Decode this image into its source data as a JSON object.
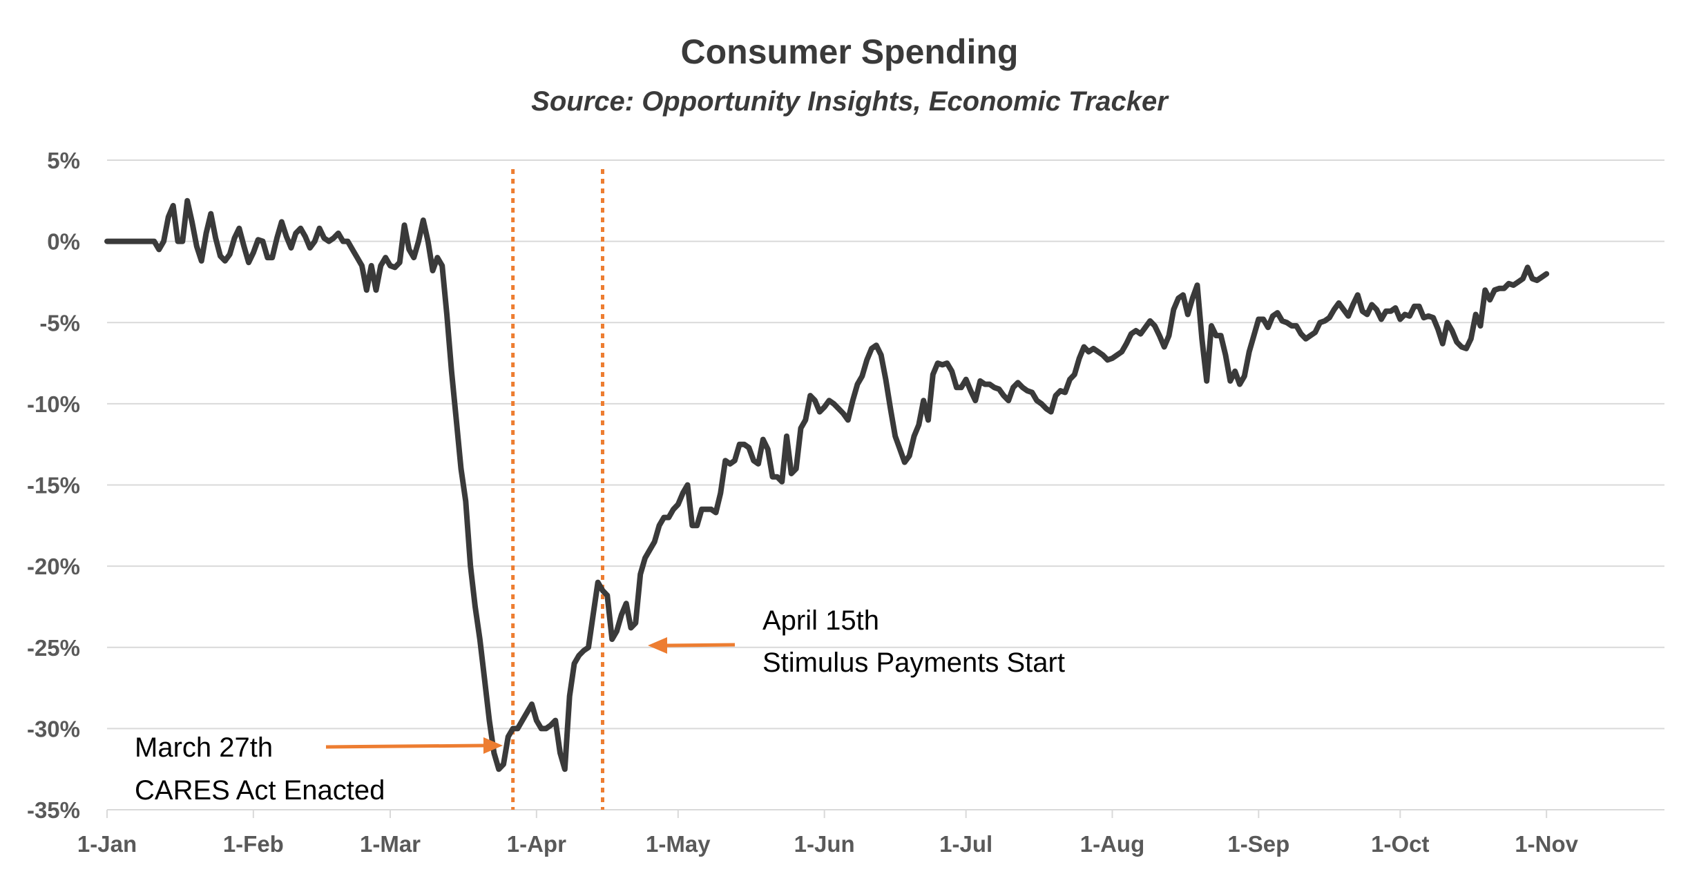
{
  "chart_data": {
    "type": "line",
    "title": "Consumer Spending",
    "subtitle": "Source: Opportunity Insights, Economic Tracker",
    "xlabel": "",
    "ylabel": "",
    "ylim": [
      -35,
      5
    ],
    "y_ticks": [
      5,
      0,
      -5,
      -10,
      -15,
      -20,
      -25,
      -30,
      -35
    ],
    "y_tick_labels": [
      "5%",
      "0%",
      "-5%",
      "-10%",
      "-15%",
      "-20%",
      "-25%",
      "-30%",
      "-35%"
    ],
    "x_range_days": [
      0,
      330
    ],
    "x_ticks": [
      {
        "day": 0,
        "label": "1-Jan"
      },
      {
        "day": 31,
        "label": "1-Feb"
      },
      {
        "day": 60,
        "label": "1-Mar"
      },
      {
        "day": 91,
        "label": "1-Apr"
      },
      {
        "day": 121,
        "label": "1-May"
      },
      {
        "day": 152,
        "label": "1-Jun"
      },
      {
        "day": 182,
        "label": "1-Jul"
      },
      {
        "day": 213,
        "label": "1-Aug"
      },
      {
        "day": 244,
        "label": "1-Sep"
      },
      {
        "day": 274,
        "label": "1-Oct"
      },
      {
        "day": 305,
        "label": "1-Nov"
      }
    ],
    "series": [
      {
        "name": "Consumer Spending",
        "color": "#3a3a3a",
        "points": [
          [
            0,
            0
          ],
          [
            5,
            0
          ],
          [
            10,
            0
          ],
          [
            11,
            -0.5
          ],
          [
            12,
            0
          ],
          [
            13,
            1.5
          ],
          [
            14,
            2.2
          ],
          [
            15,
            0
          ],
          [
            16,
            0
          ],
          [
            17,
            2.5
          ],
          [
            18,
            1.2
          ],
          [
            19,
            -0.3
          ],
          [
            20,
            -1.2
          ],
          [
            21,
            0.5
          ],
          [
            22,
            1.7
          ],
          [
            23,
            0.2
          ],
          [
            24,
            -0.9
          ],
          [
            25,
            -1.2
          ],
          [
            26,
            -0.8
          ],
          [
            27,
            0.2
          ],
          [
            28,
            0.8
          ],
          [
            29,
            -0.3
          ],
          [
            30,
            -1.3
          ],
          [
            31,
            -0.7
          ],
          [
            32,
            0.1
          ],
          [
            33,
            0
          ],
          [
            34,
            -1
          ],
          [
            35,
            -1
          ],
          [
            36,
            0.2
          ],
          [
            37,
            1.2
          ],
          [
            38,
            0.3
          ],
          [
            39,
            -0.4
          ],
          [
            40,
            0.5
          ],
          [
            41,
            0.8
          ],
          [
            42,
            0.3
          ],
          [
            43,
            -0.4
          ],
          [
            44,
            0
          ],
          [
            45,
            0.8
          ],
          [
            46,
            0.2
          ],
          [
            47,
            0
          ],
          [
            48,
            0.2
          ],
          [
            49,
            0.5
          ],
          [
            50,
            0
          ],
          [
            51,
            0
          ],
          [
            52,
            -0.5
          ],
          [
            53,
            -1
          ],
          [
            54,
            -1.5
          ],
          [
            55,
            -3
          ],
          [
            56,
            -1.5
          ],
          [
            57,
            -3
          ],
          [
            58,
            -1.5
          ],
          [
            59,
            -1
          ],
          [
            60,
            -1.5
          ],
          [
            61,
            -1.6
          ],
          [
            62,
            -1.3
          ],
          [
            63,
            1
          ],
          [
            64,
            -0.5
          ],
          [
            65,
            -1
          ],
          [
            66,
            0
          ],
          [
            67,
            1.3
          ],
          [
            68,
            0
          ],
          [
            69,
            -1.8
          ],
          [
            70,
            -1
          ],
          [
            71,
            -1.5
          ],
          [
            72,
            -4.5
          ],
          [
            73,
            -8
          ],
          [
            74,
            -11
          ],
          [
            75,
            -14
          ],
          [
            76,
            -16
          ],
          [
            77,
            -20
          ],
          [
            78,
            -22.5
          ],
          [
            79,
            -24.5
          ],
          [
            80,
            -27
          ],
          [
            81,
            -29.5
          ],
          [
            82,
            -31.5
          ],
          [
            83,
            -32.5
          ],
          [
            84,
            -32.2
          ],
          [
            85,
            -30.5
          ],
          [
            86,
            -30
          ],
          [
            87,
            -30
          ],
          [
            88,
            -29.5
          ],
          [
            89,
            -29
          ],
          [
            90,
            -28.5
          ],
          [
            91,
            -29.5
          ],
          [
            92,
            -30
          ],
          [
            93,
            -30
          ],
          [
            94,
            -29.8
          ],
          [
            95,
            -29.5
          ],
          [
            96,
            -31.5
          ],
          [
            97,
            -32.5
          ],
          [
            98,
            -28
          ],
          [
            99,
            -26
          ],
          [
            100,
            -25.5
          ],
          [
            101,
            -25.2
          ],
          [
            102,
            -25
          ],
          [
            103,
            -23
          ],
          [
            104,
            -21
          ],
          [
            105,
            -21.5
          ],
          [
            106,
            -21.8
          ],
          [
            107,
            -24.5
          ],
          [
            108,
            -24
          ],
          [
            109,
            -23
          ],
          [
            110,
            -22.3
          ],
          [
            111,
            -23.8
          ],
          [
            112,
            -23.5
          ],
          [
            113,
            -20.5
          ],
          [
            114,
            -19.5
          ],
          [
            115,
            -19
          ],
          [
            116,
            -18.5
          ],
          [
            117,
            -17.5
          ],
          [
            118,
            -17
          ],
          [
            119,
            -17
          ],
          [
            120,
            -16.5
          ],
          [
            121,
            -16.2
          ],
          [
            122,
            -15.5
          ],
          [
            123,
            -15
          ],
          [
            124,
            -17.5
          ],
          [
            125,
            -17.5
          ],
          [
            126,
            -16.5
          ],
          [
            127,
            -16.5
          ],
          [
            128,
            -16.5
          ],
          [
            129,
            -16.7
          ],
          [
            130,
            -15.5
          ],
          [
            131,
            -13.5
          ],
          [
            132,
            -13.7
          ],
          [
            133,
            -13.5
          ],
          [
            134,
            -12.5
          ],
          [
            135,
            -12.5
          ],
          [
            136,
            -12.7
          ],
          [
            137,
            -13.5
          ],
          [
            138,
            -13.7
          ],
          [
            139,
            -12.2
          ],
          [
            140,
            -12.8
          ],
          [
            141,
            -14.5
          ],
          [
            142,
            -14.5
          ],
          [
            143,
            -14.8
          ],
          [
            144,
            -12
          ],
          [
            145,
            -14.3
          ],
          [
            146,
            -14
          ],
          [
            147,
            -11.5
          ],
          [
            148,
            -11
          ],
          [
            149,
            -9.5
          ],
          [
            150,
            -9.8
          ],
          [
            151,
            -10.5
          ],
          [
            152,
            -10.2
          ],
          [
            153,
            -9.8
          ],
          [
            154,
            -10
          ],
          [
            155,
            -10.3
          ],
          [
            156,
            -10.6
          ],
          [
            157,
            -11
          ],
          [
            158,
            -9.8
          ],
          [
            159,
            -8.8
          ],
          [
            160,
            -8.3
          ],
          [
            161,
            -7.3
          ],
          [
            162,
            -6.6
          ],
          [
            163,
            -6.4
          ],
          [
            164,
            -7
          ],
          [
            165,
            -8.5
          ],
          [
            166,
            -10.3
          ],
          [
            167,
            -12
          ],
          [
            168,
            -12.8
          ],
          [
            169,
            -13.6
          ],
          [
            170,
            -13.2
          ],
          [
            171,
            -12
          ],
          [
            172,
            -11.3
          ],
          [
            173,
            -9.8
          ],
          [
            174,
            -11
          ],
          [
            175,
            -8.2
          ],
          [
            176,
            -7.5
          ],
          [
            177,
            -7.6
          ],
          [
            178,
            -7.5
          ],
          [
            179,
            -8
          ],
          [
            180,
            -9
          ],
          [
            181,
            -9
          ],
          [
            182,
            -8.5
          ],
          [
            183,
            -9.2
          ],
          [
            184,
            -9.8
          ],
          [
            185,
            -8.6
          ],
          [
            186,
            -8.8
          ],
          [
            187,
            -8.8
          ],
          [
            188,
            -9
          ],
          [
            189,
            -9.1
          ],
          [
            190,
            -9.5
          ],
          [
            191,
            -9.8
          ],
          [
            192,
            -9
          ],
          [
            193,
            -8.7
          ],
          [
            194,
            -9
          ],
          [
            195,
            -9.2
          ],
          [
            196,
            -9.3
          ],
          [
            197,
            -9.8
          ],
          [
            198,
            -10
          ],
          [
            199,
            -10.3
          ],
          [
            200,
            -10.5
          ],
          [
            201,
            -9.5
          ],
          [
            202,
            -9.2
          ],
          [
            203,
            -9.3
          ],
          [
            204,
            -8.5
          ],
          [
            205,
            -8.2
          ],
          [
            206,
            -7.2
          ],
          [
            207,
            -6.5
          ],
          [
            208,
            -6.8
          ],
          [
            209,
            -6.6
          ],
          [
            210,
            -6.8
          ],
          [
            211,
            -7
          ],
          [
            212,
            -7.3
          ],
          [
            213,
            -7.2
          ],
          [
            214,
            -7
          ],
          [
            215,
            -6.8
          ],
          [
            216,
            -6.3
          ],
          [
            217,
            -5.7
          ],
          [
            218,
            -5.5
          ],
          [
            219,
            -5.7
          ],
          [
            220,
            -5.3
          ],
          [
            221,
            -4.9
          ],
          [
            222,
            -5.2
          ],
          [
            223,
            -5.8
          ],
          [
            224,
            -6.5
          ],
          [
            225,
            -5.8
          ],
          [
            226,
            -4.2
          ],
          [
            227,
            -3.5
          ],
          [
            228,
            -3.3
          ],
          [
            229,
            -4.5
          ],
          [
            230,
            -3.5
          ],
          [
            231,
            -2.7
          ],
          [
            232,
            -6
          ],
          [
            233,
            -8.6
          ],
          [
            234,
            -5.2
          ],
          [
            235,
            -5.8
          ],
          [
            236,
            -5.8
          ],
          [
            237,
            -7
          ],
          [
            238,
            -8.6
          ],
          [
            239,
            -8
          ],
          [
            240,
            -8.8
          ],
          [
            241,
            -8.3
          ],
          [
            242,
            -6.8
          ],
          [
            243,
            -5.8
          ],
          [
            244,
            -4.8
          ],
          [
            245,
            -4.8
          ],
          [
            246,
            -5.3
          ],
          [
            247,
            -4.6
          ],
          [
            248,
            -4.4
          ],
          [
            249,
            -4.9
          ],
          [
            250,
            -5
          ],
          [
            251,
            -5.2
          ],
          [
            252,
            -5.2
          ],
          [
            253,
            -5.7
          ],
          [
            254,
            -6
          ],
          [
            255,
            -5.8
          ],
          [
            256,
            -5.6
          ],
          [
            257,
            -5
          ],
          [
            258,
            -4.9
          ],
          [
            259,
            -4.7
          ],
          [
            260,
            -4.2
          ],
          [
            261,
            -3.8
          ],
          [
            262,
            -4.2
          ],
          [
            263,
            -4.6
          ],
          [
            264,
            -3.9
          ],
          [
            265,
            -3.3
          ],
          [
            266,
            -4.3
          ],
          [
            267,
            -4.5
          ],
          [
            268,
            -3.9
          ],
          [
            269,
            -4.2
          ],
          [
            270,
            -4.8
          ],
          [
            271,
            -4.3
          ],
          [
            272,
            -4.3
          ],
          [
            273,
            -4.1
          ],
          [
            274,
            -4.8
          ],
          [
            275,
            -4.5
          ],
          [
            276,
            -4.6
          ],
          [
            277,
            -4
          ],
          [
            278,
            -4
          ],
          [
            279,
            -4.7
          ],
          [
            280,
            -4.6
          ],
          [
            281,
            -4.7
          ],
          [
            282,
            -5.4
          ],
          [
            283,
            -6.3
          ],
          [
            284,
            -5
          ],
          [
            285,
            -5.5
          ],
          [
            286,
            -6.2
          ],
          [
            287,
            -6.5
          ],
          [
            288,
            -6.6
          ],
          [
            289,
            -6
          ],
          [
            290,
            -4.5
          ],
          [
            291,
            -5.2
          ],
          [
            292,
            -3
          ],
          [
            293,
            -3.6
          ],
          [
            294,
            -3
          ],
          [
            295,
            -2.9
          ],
          [
            296,
            -2.9
          ],
          [
            297,
            -2.6
          ],
          [
            298,
            -2.7
          ],
          [
            299,
            -2.5
          ],
          [
            300,
            -2.3
          ],
          [
            301,
            -1.6
          ],
          [
            302,
            -2.3
          ],
          [
            303,
            -2.4
          ],
          [
            304,
            -2.2
          ],
          [
            305,
            -2
          ]
        ]
      }
    ],
    "annotations": [
      {
        "day": 86,
        "label": "March 27th CARES Act Enacted",
        "line_color": "#ed7d31"
      },
      {
        "day": 105,
        "label": "April 15th Stimulus Payments Start",
        "line_color": "#ed7d31"
      }
    ]
  },
  "annotations": {
    "cares_line1": "March 27th",
    "cares_line2": "CARES Act Enacted",
    "stimulus_line1": "April 15th",
    "stimulus_line2": "Stimulus Payments Start",
    "accent_color": "#ed7d31"
  }
}
